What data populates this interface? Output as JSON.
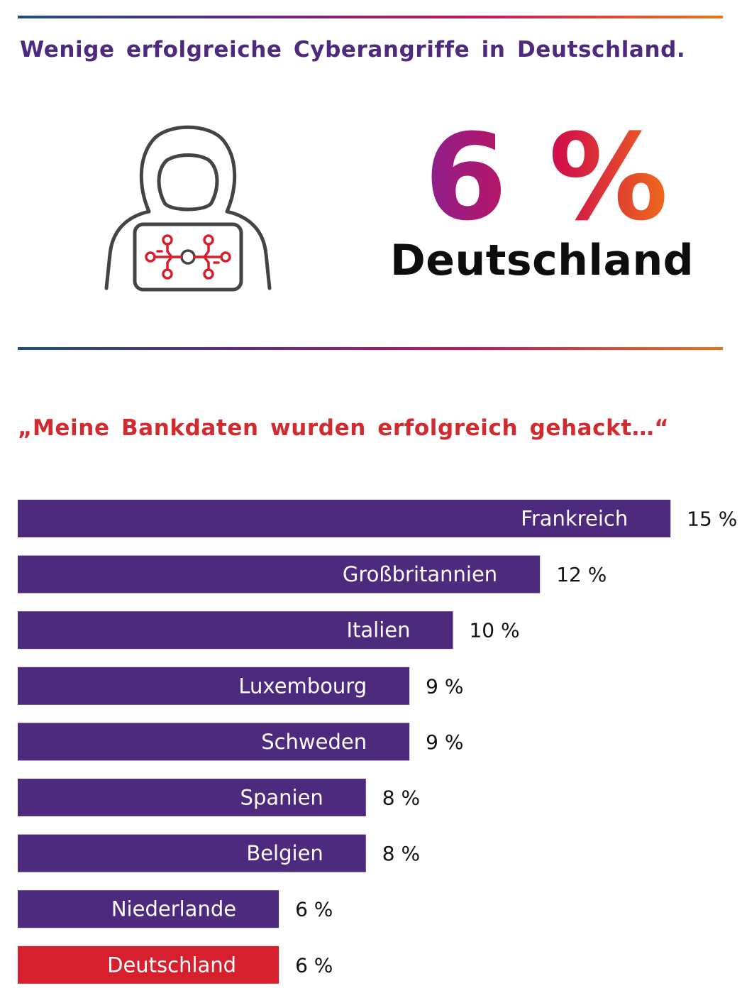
{
  "header": {
    "title": "Wenige erfolgreiche Cyberangriffe in Deutschland."
  },
  "hero": {
    "percent": "6 %",
    "country": "Deutschland",
    "icon": "hacker-laptop-circuit-icon",
    "gradient": [
      "#8e1f8e",
      "#d1104a",
      "#ee6a1c"
    ]
  },
  "colors": {
    "bar_default": "#4e2a7e",
    "bar_highlight": "#d7202e",
    "title": "#4e2a7e",
    "quote": "#d12b30"
  },
  "chart_data": {
    "type": "bar",
    "orientation": "horizontal",
    "title": "„Meine Bankdaten wurden erfolgreich gehackt…“",
    "categories": [
      "Frankreich",
      "Großbritannien",
      "Italien",
      "Luxembourg",
      "Schweden",
      "Spanien",
      "Belgien",
      "Niederlande",
      "Deutschland"
    ],
    "values": [
      15,
      12,
      10,
      9,
      9,
      8,
      8,
      6,
      6
    ],
    "value_labels": [
      "15 %",
      "12 %",
      "10 %",
      "9 %",
      "9 %",
      "8 %",
      "8 %",
      "6 %",
      "6 %"
    ],
    "unit": "%",
    "highlight": "Deutschland",
    "xlim": [
      0,
      16.3
    ],
    "grid": false,
    "legend": "none"
  }
}
